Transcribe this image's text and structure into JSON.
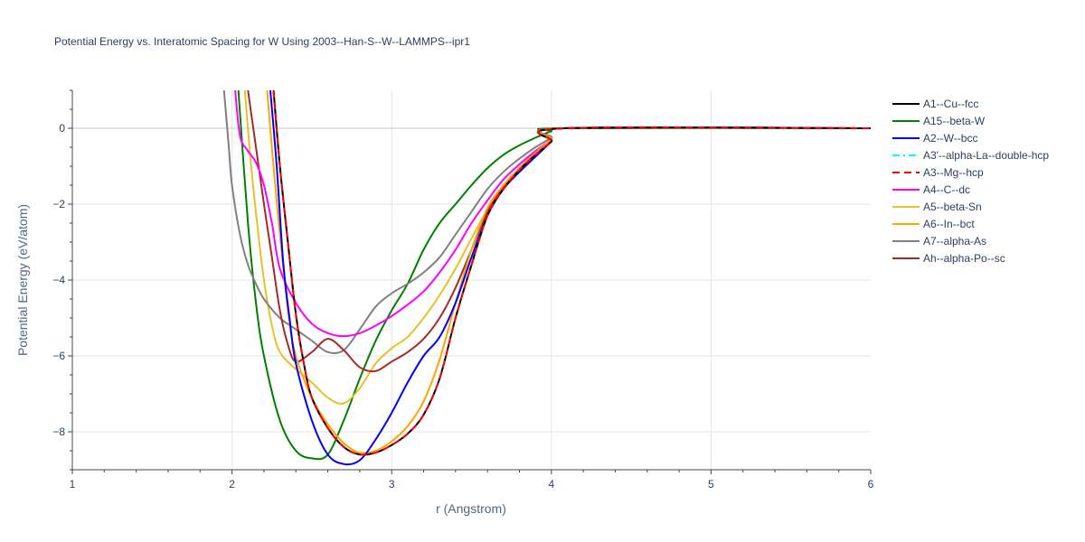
{
  "chart_data": {
    "type": "line",
    "title": "Potential Energy vs. Interatomic Spacing for W Using 2003--Han-S--W--LAMMPS--ipr1",
    "xlabel": "r (Angstrom)",
    "ylabel": "Potential Energy (eV/atom)",
    "xlim": [
      1,
      6
    ],
    "ylim": [
      -9,
      1
    ],
    "xticks": [
      "1",
      "2",
      "3",
      "4",
      "5",
      "6"
    ],
    "yticks": [
      "0",
      "−2",
      "−4",
      "−6",
      "−8"
    ],
    "grid": true,
    "legend_position": "right",
    "series": [
      {
        "name": "A1--Cu--fcc",
        "color": "#000000",
        "dash": "solid",
        "points": [
          [
            2.26,
            1.0
          ],
          [
            2.3,
            -1.0
          ],
          [
            2.35,
            -3.0
          ],
          [
            2.4,
            -4.9
          ],
          [
            2.45,
            -6.2
          ],
          [
            2.5,
            -7.1
          ],
          [
            2.6,
            -7.9
          ],
          [
            2.7,
            -8.4
          ],
          [
            2.8,
            -8.6
          ],
          [
            2.9,
            -8.55
          ],
          [
            3.0,
            -8.35
          ],
          [
            3.1,
            -8.05
          ],
          [
            3.2,
            -7.55
          ],
          [
            3.3,
            -6.6
          ],
          [
            3.4,
            -5.0
          ],
          [
            3.5,
            -3.6
          ],
          [
            3.6,
            -2.3
          ],
          [
            3.7,
            -1.6
          ],
          [
            3.8,
            -1.1
          ],
          [
            3.9,
            -0.7
          ],
          [
            4.0,
            -0.35
          ],
          [
            4.08,
            0.0
          ],
          [
            6.0,
            0.0
          ]
        ]
      },
      {
        "name": "A15--beta-W",
        "color": "#008000",
        "dash": "solid",
        "points": [
          [
            2.04,
            1.0
          ],
          [
            2.1,
            -2.5
          ],
          [
            2.15,
            -4.6
          ],
          [
            2.2,
            -6.0
          ],
          [
            2.3,
            -7.7
          ],
          [
            2.4,
            -8.5
          ],
          [
            2.5,
            -8.7
          ],
          [
            2.6,
            -8.6
          ],
          [
            2.7,
            -7.7
          ],
          [
            2.8,
            -6.6
          ],
          [
            2.9,
            -5.6
          ],
          [
            3.0,
            -4.8
          ],
          [
            3.1,
            -4.1
          ],
          [
            3.2,
            -3.2
          ],
          [
            3.3,
            -2.5
          ],
          [
            3.4,
            -2.0
          ],
          [
            3.5,
            -1.5
          ],
          [
            3.6,
            -1.05
          ],
          [
            3.7,
            -0.7
          ],
          [
            3.8,
            -0.45
          ],
          [
            3.9,
            -0.25
          ],
          [
            4.0,
            -0.08
          ],
          [
            4.08,
            0.0
          ],
          [
            6.0,
            0.0
          ]
        ]
      },
      {
        "name": "A2--W--bcc",
        "color": "#0000ff",
        "dash": "solid",
        "points": [
          [
            2.24,
            1.0
          ],
          [
            2.28,
            -1.0
          ],
          [
            2.32,
            -3.5
          ],
          [
            2.36,
            -5.0
          ],
          [
            2.4,
            -6.2
          ],
          [
            2.5,
            -7.7
          ],
          [
            2.6,
            -8.6
          ],
          [
            2.7,
            -8.85
          ],
          [
            2.8,
            -8.75
          ],
          [
            2.9,
            -8.2
          ],
          [
            3.0,
            -7.5
          ],
          [
            3.1,
            -6.7
          ],
          [
            3.2,
            -6.0
          ],
          [
            3.3,
            -5.5
          ],
          [
            3.4,
            -4.6
          ],
          [
            3.5,
            -3.4
          ],
          [
            3.6,
            -2.3
          ],
          [
            3.7,
            -1.6
          ],
          [
            3.8,
            -1.15
          ],
          [
            3.9,
            -0.75
          ],
          [
            4.0,
            -0.35
          ],
          [
            4.08,
            0.0
          ],
          [
            6.0,
            0.0
          ]
        ]
      },
      {
        "name": "A3'--alpha-La--double-hcp",
        "color": "#00ffff",
        "dash": "dashdot",
        "points": [
          [
            2.26,
            1.0
          ],
          [
            2.3,
            -1.0
          ],
          [
            2.35,
            -3.0
          ],
          [
            2.4,
            -4.9
          ],
          [
            2.45,
            -6.2
          ],
          [
            2.5,
            -7.1
          ],
          [
            2.6,
            -7.9
          ],
          [
            2.7,
            -8.4
          ],
          [
            2.8,
            -8.6
          ],
          [
            2.9,
            -8.55
          ],
          [
            3.0,
            -8.35
          ],
          [
            3.1,
            -8.05
          ],
          [
            3.2,
            -7.55
          ],
          [
            3.3,
            -6.6
          ],
          [
            3.4,
            -5.0
          ],
          [
            3.5,
            -3.6
          ],
          [
            3.6,
            -2.3
          ],
          [
            3.7,
            -1.6
          ],
          [
            3.8,
            -1.1
          ],
          [
            3.9,
            -0.7
          ],
          [
            4.0,
            -0.35
          ],
          [
            4.08,
            0.0
          ],
          [
            6.0,
            0.0
          ]
        ]
      },
      {
        "name": "A3--Mg--hcp",
        "color": "#ff0000",
        "dash": "dash",
        "points": [
          [
            2.26,
            1.0
          ],
          [
            2.3,
            -1.0
          ],
          [
            2.35,
            -3.0
          ],
          [
            2.4,
            -4.9
          ],
          [
            2.45,
            -6.2
          ],
          [
            2.5,
            -7.1
          ],
          [
            2.6,
            -7.9
          ],
          [
            2.7,
            -8.4
          ],
          [
            2.8,
            -8.6
          ],
          [
            2.9,
            -8.55
          ],
          [
            3.0,
            -8.35
          ],
          [
            3.1,
            -8.05
          ],
          [
            3.2,
            -7.55
          ],
          [
            3.3,
            -6.6
          ],
          [
            3.4,
            -5.0
          ],
          [
            3.5,
            -3.6
          ],
          [
            3.6,
            -2.3
          ],
          [
            3.7,
            -1.6
          ],
          [
            3.8,
            -1.1
          ],
          [
            3.9,
            -0.7
          ],
          [
            4.0,
            -0.35
          ],
          [
            4.08,
            0.0
          ],
          [
            6.0,
            0.0
          ]
        ]
      },
      {
        "name": "A4--C--dc",
        "color": "#ff00ff",
        "dash": "solid",
        "points": [
          [
            2.02,
            1.0
          ],
          [
            2.05,
            -0.2
          ],
          [
            2.1,
            -0.6
          ],
          [
            2.15,
            -0.9
          ],
          [
            2.2,
            -1.5
          ],
          [
            2.25,
            -2.5
          ],
          [
            2.3,
            -3.7
          ],
          [
            2.4,
            -4.6
          ],
          [
            2.5,
            -5.15
          ],
          [
            2.6,
            -5.4
          ],
          [
            2.7,
            -5.48
          ],
          [
            2.8,
            -5.4
          ],
          [
            2.9,
            -5.2
          ],
          [
            3.0,
            -4.95
          ],
          [
            3.1,
            -4.65
          ],
          [
            3.2,
            -4.3
          ],
          [
            3.3,
            -3.8
          ],
          [
            3.4,
            -3.2
          ],
          [
            3.5,
            -2.5
          ],
          [
            3.6,
            -1.9
          ],
          [
            3.7,
            -1.35
          ],
          [
            3.8,
            -0.95
          ],
          [
            3.9,
            -0.6
          ],
          [
            4.0,
            -0.3
          ],
          [
            4.08,
            0.0
          ],
          [
            6.0,
            0.0
          ]
        ]
      },
      {
        "name": "A5--beta-Sn",
        "color": "#e6c229",
        "dash": "solid",
        "points": [
          [
            2.08,
            1.0
          ],
          [
            2.12,
            -1.0
          ],
          [
            2.16,
            -2.6
          ],
          [
            2.2,
            -4.0
          ],
          [
            2.25,
            -5.2
          ],
          [
            2.3,
            -5.9
          ],
          [
            2.4,
            -6.35
          ],
          [
            2.5,
            -6.7
          ],
          [
            2.6,
            -7.1
          ],
          [
            2.7,
            -7.25
          ],
          [
            2.8,
            -6.85
          ],
          [
            2.9,
            -6.2
          ],
          [
            3.0,
            -5.8
          ],
          [
            3.1,
            -5.5
          ],
          [
            3.2,
            -5.0
          ],
          [
            3.3,
            -4.4
          ],
          [
            3.4,
            -3.7
          ],
          [
            3.5,
            -2.9
          ],
          [
            3.6,
            -2.15
          ],
          [
            3.7,
            -1.55
          ],
          [
            3.8,
            -1.05
          ],
          [
            3.9,
            -0.65
          ],
          [
            4.0,
            -0.3
          ],
          [
            4.08,
            0.0
          ],
          [
            6.0,
            0.0
          ]
        ]
      },
      {
        "name": "A6--In--bct",
        "color": "#ffa500",
        "dash": "solid",
        "points": [
          [
            2.22,
            1.0
          ],
          [
            2.26,
            -1.0
          ],
          [
            2.3,
            -2.8
          ],
          [
            2.35,
            -4.8
          ],
          [
            2.4,
            -6.0
          ],
          [
            2.5,
            -7.1
          ],
          [
            2.6,
            -7.8
          ],
          [
            2.7,
            -8.3
          ],
          [
            2.8,
            -8.55
          ],
          [
            2.9,
            -8.5
          ],
          [
            3.0,
            -8.25
          ],
          [
            3.1,
            -7.85
          ],
          [
            3.2,
            -7.2
          ],
          [
            3.3,
            -6.1
          ],
          [
            3.4,
            -4.6
          ],
          [
            3.5,
            -3.2
          ],
          [
            3.6,
            -2.1
          ],
          [
            3.7,
            -1.5
          ],
          [
            3.8,
            -1.05
          ],
          [
            3.9,
            -0.65
          ],
          [
            4.0,
            -0.3
          ],
          [
            4.08,
            0.0
          ],
          [
            6.0,
            0.0
          ]
        ]
      },
      {
        "name": "A7--alpha-As",
        "color": "#808080",
        "dash": "solid",
        "points": [
          [
            1.95,
            1.0
          ],
          [
            1.98,
            -0.5
          ],
          [
            2.0,
            -1.5
          ],
          [
            2.05,
            -2.8
          ],
          [
            2.1,
            -3.6
          ],
          [
            2.15,
            -4.1
          ],
          [
            2.2,
            -4.5
          ],
          [
            2.3,
            -5.0
          ],
          [
            2.4,
            -5.3
          ],
          [
            2.5,
            -5.6
          ],
          [
            2.6,
            -5.9
          ],
          [
            2.7,
            -5.85
          ],
          [
            2.8,
            -5.3
          ],
          [
            2.9,
            -4.7
          ],
          [
            3.0,
            -4.35
          ],
          [
            3.1,
            -4.1
          ],
          [
            3.2,
            -3.8
          ],
          [
            3.3,
            -3.4
          ],
          [
            3.4,
            -2.8
          ],
          [
            3.5,
            -2.2
          ],
          [
            3.6,
            -1.6
          ],
          [
            3.7,
            -1.15
          ],
          [
            3.8,
            -0.8
          ],
          [
            3.9,
            -0.5
          ],
          [
            4.0,
            -0.25
          ],
          [
            4.08,
            0.0
          ],
          [
            6.0,
            0.0
          ]
        ]
      },
      {
        "name": "Ah--alpha-Po--sc",
        "color": "#a52a2a",
        "dash": "solid",
        "points": [
          [
            2.1,
            1.0
          ],
          [
            2.15,
            -0.5
          ],
          [
            2.2,
            -2.0
          ],
          [
            2.25,
            -3.4
          ],
          [
            2.3,
            -4.8
          ],
          [
            2.35,
            -5.7
          ],
          [
            2.4,
            -6.15
          ],
          [
            2.5,
            -5.9
          ],
          [
            2.6,
            -5.55
          ],
          [
            2.7,
            -5.85
          ],
          [
            2.8,
            -6.3
          ],
          [
            2.9,
            -6.4
          ],
          [
            3.0,
            -6.15
          ],
          [
            3.1,
            -5.9
          ],
          [
            3.2,
            -5.55
          ],
          [
            3.3,
            -5.0
          ],
          [
            3.4,
            -4.2
          ],
          [
            3.5,
            -3.2
          ],
          [
            3.6,
            -2.2
          ],
          [
            3.7,
            -1.55
          ],
          [
            3.8,
            -1.05
          ],
          [
            3.9,
            -0.65
          ],
          [
            4.0,
            -0.3
          ],
          [
            4.08,
            0.0
          ],
          [
            6.0,
            0.0
          ]
        ]
      }
    ]
  }
}
